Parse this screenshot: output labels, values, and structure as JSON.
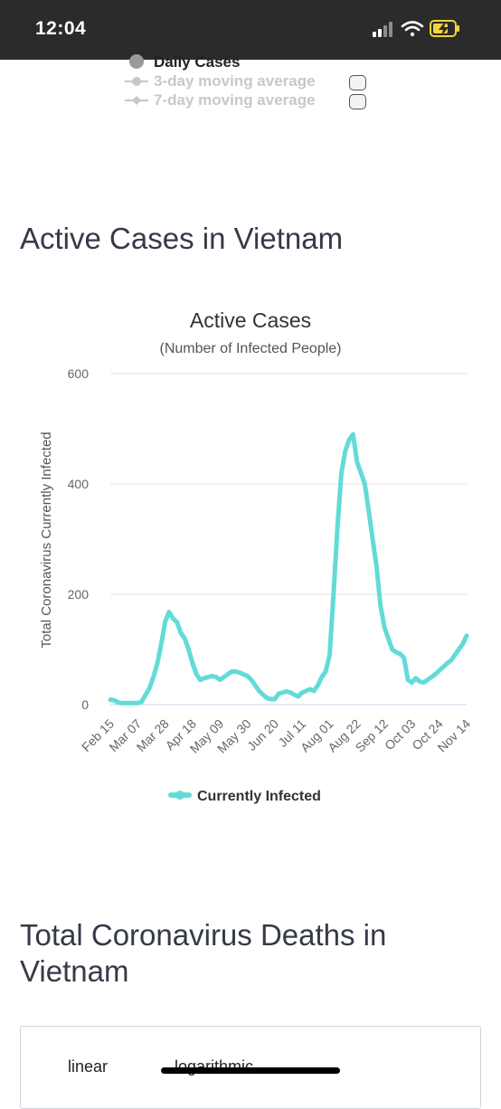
{
  "status_bar": {
    "time": "12:04"
  },
  "prev_legend": {
    "items": [
      {
        "label": "Daily Cases",
        "state": "active"
      },
      {
        "label": "3-day moving average",
        "state": "inactive"
      },
      {
        "label": "7-day moving average",
        "state": "inactive"
      }
    ]
  },
  "active_section": {
    "heading": "Active Cases in Vietnam"
  },
  "chart_data": {
    "type": "line",
    "title": "Active Cases",
    "subtitle": "(Number of Infected People)",
    "ylabel": "Total Coronavirus Currently Infected",
    "xlabel": "",
    "ylim": [
      0,
      600
    ],
    "yticks": [
      0,
      200,
      400,
      600
    ],
    "x_tick_labels": [
      "Feb 15",
      "Mar 07",
      "Mar 28",
      "Apr 18",
      "May 09",
      "May 30",
      "Jun 20",
      "Jul 11",
      "Aug 01",
      "Aug 22",
      "Sep 12",
      "Oct 03",
      "Oct 24",
      "Nov 14"
    ],
    "grid": true,
    "legend_position": "bottom",
    "color": "#62dbd8",
    "series": [
      {
        "name": "Currently Infected",
        "x": [
          "Feb 15",
          "Feb 18",
          "Feb 21",
          "Feb 24",
          "Feb 27",
          "Mar 01",
          "Mar 04",
          "Mar 07",
          "Mar 10",
          "Mar 13",
          "Mar 16",
          "Mar 19",
          "Mar 22",
          "Mar 25",
          "Mar 28",
          "Mar 31",
          "Apr 03",
          "Apr 06",
          "Apr 09",
          "Apr 12",
          "Apr 15",
          "Apr 18",
          "Apr 21",
          "Apr 24",
          "Apr 27",
          "Apr 30",
          "May 03",
          "May 06",
          "May 09",
          "May 12",
          "May 15",
          "May 18",
          "May 21",
          "May 24",
          "May 27",
          "May 30",
          "Jun 02",
          "Jun 05",
          "Jun 08",
          "Jun 11",
          "Jun 14",
          "Jun 17",
          "Jun 20",
          "Jun 23",
          "Jun 26",
          "Jun 29",
          "Jul 02",
          "Jul 05",
          "Jul 08",
          "Jul 11",
          "Jul 14",
          "Jul 17",
          "Jul 20",
          "Jul 23",
          "Jul 26",
          "Jul 29",
          "Aug 01",
          "Aug 04",
          "Aug 07",
          "Aug 10",
          "Aug 13",
          "Aug 16",
          "Aug 19",
          "Aug 22",
          "Aug 25",
          "Aug 28",
          "Aug 31",
          "Sep 03",
          "Sep 06",
          "Sep 09",
          "Sep 12",
          "Sep 15",
          "Sep 18",
          "Sep 21",
          "Sep 24",
          "Sep 27",
          "Sep 30",
          "Oct 03",
          "Oct 06",
          "Oct 09",
          "Oct 12",
          "Oct 15",
          "Oct 18",
          "Oct 21",
          "Oct 24",
          "Oct 27",
          "Oct 30",
          "Nov 02",
          "Nov 05",
          "Nov 08",
          "Nov 11",
          "Nov 14"
        ],
        "values": [
          9,
          8,
          4,
          3,
          3,
          3,
          3,
          3,
          5,
          18,
          30,
          50,
          75,
          110,
          150,
          168,
          156,
          150,
          130,
          120,
          100,
          75,
          55,
          45,
          48,
          50,
          52,
          50,
          45,
          50,
          55,
          60,
          60,
          58,
          55,
          52,
          45,
          35,
          25,
          18,
          12,
          10,
          10,
          20,
          22,
          24,
          22,
          18,
          15,
          22,
          25,
          28,
          25,
          35,
          50,
          60,
          90,
          200,
          320,
          420,
          460,
          480,
          490,
          440,
          420,
          400,
          350,
          300,
          250,
          180,
          140,
          120,
          100,
          95,
          92,
          85,
          45,
          40,
          48,
          42,
          40,
          45,
          50,
          55,
          62,
          68,
          75,
          80,
          90,
          100,
          110,
          125
        ]
      }
    ]
  },
  "deaths_section": {
    "heading": "Total Coronavirus Deaths in Vietnam"
  },
  "scale_options": {
    "linear": "linear",
    "logarithmic": "logarithmic"
  }
}
